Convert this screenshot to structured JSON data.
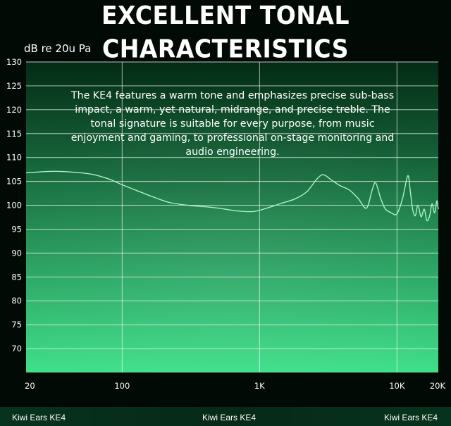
{
  "header": {
    "title": "EXCELLENT TONAL CHARACTERISTICS"
  },
  "footer": {
    "labels": [
      "Kiwi Ears KE4",
      "Kiwi Ears KE4",
      "Kiwi Ears KE4"
    ]
  },
  "colors": {
    "curve": "#a9f1c3",
    "grid": "#ffffff",
    "gradient_top": "#032a14",
    "gradient_bottom": "#3fe08a"
  },
  "chart_data": {
    "type": "line",
    "ylabel": "dB re 20u Pa",
    "xscale": "log",
    "xlim": [
      20,
      20000
    ],
    "ylim": [
      65,
      130
    ],
    "yticks": [
      70,
      75,
      80,
      85,
      90,
      95,
      100,
      105,
      110,
      115,
      120,
      125,
      130
    ],
    "xticks": [
      {
        "value": 20,
        "label": "20"
      },
      {
        "value": 100,
        "label": "100"
      },
      {
        "value": 1000,
        "label": "1K"
      },
      {
        "value": 10000,
        "label": "10K"
      },
      {
        "value": 20000,
        "label": "20K"
      }
    ],
    "annotation": "The KE4 features a warm tone and emphasizes precise sub-bass impact, a warm, yet natural, midrange, and precise treble. The tonal signature is suitable for every purpose, from music enjoyment and gaming, to professional on-stage monitoring and audio engineering.",
    "series": [
      {
        "x": [
          20,
          30,
          40,
          60,
          80,
          100,
          130,
          170,
          220,
          300,
          400,
          500,
          700,
          900,
          1100,
          1400,
          1800,
          2200,
          2600,
          2900,
          3300,
          3800,
          4500,
          5200,
          6000,
          6600,
          7000,
          7600,
          8200,
          9000,
          10000,
          11000,
          12000,
          12500,
          13000,
          13600,
          14200,
          15000,
          15800,
          16500,
          17300,
          18000,
          18800,
          19500,
          20000
        ],
        "y": [
          106.8,
          107.1,
          107,
          106.5,
          105.5,
          104.3,
          103,
          101.7,
          100.6,
          100,
          99.7,
          99.4,
          98.8,
          98.7,
          99.3,
          100.3,
          101.3,
          102.8,
          105.4,
          106.4,
          105.4,
          104.2,
          103.2,
          101.5,
          99.4,
          103.2,
          104.7,
          101.5,
          99.3,
          98.5,
          98.2,
          101.5,
          106.2,
          103,
          99.2,
          97.8,
          100,
          97.6,
          99.2,
          96.8,
          97.8,
          100.3,
          98.4,
          100.9,
          99.2
        ]
      }
    ]
  }
}
